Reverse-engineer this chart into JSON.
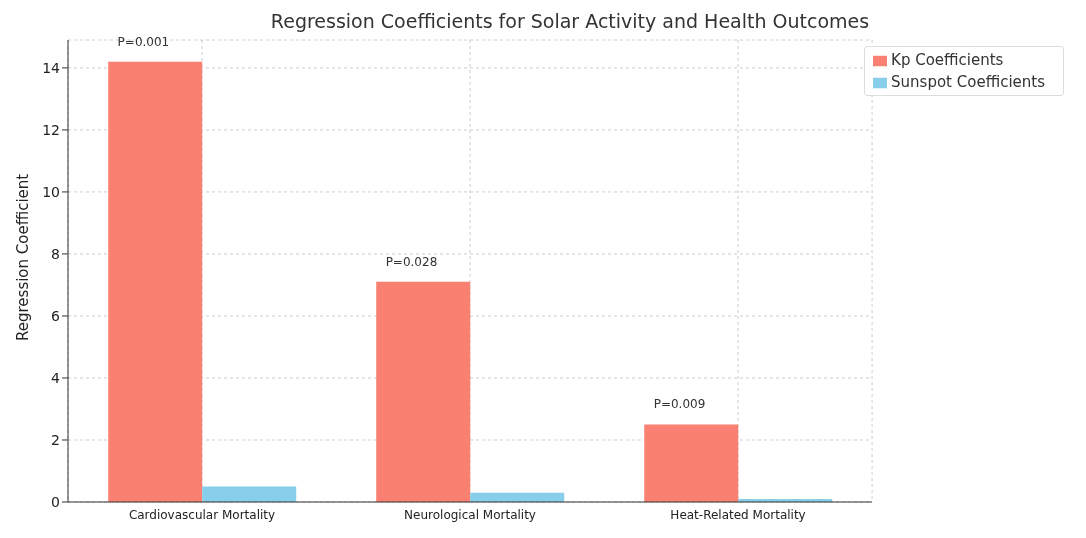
{
  "chart_data": {
    "type": "bar",
    "title": "Regression Coefficients for Solar Activity and Health Outcomes",
    "ylabel": "Regression Coefficient",
    "categories": [
      "Cardiovascular Mortality",
      "Neurological Mortality",
      "Heat-Related Mortality"
    ],
    "series": [
      {
        "name": "Kp Coefficients",
        "color": "#fa8072",
        "values": [
          14.2,
          7.1,
          2.5
        ]
      },
      {
        "name": "Sunspot Coefficients",
        "color": "#87ceeb",
        "values": [
          0.5,
          0.3,
          0.1
        ]
      }
    ],
    "ylim": [
      0,
      14.9
    ],
    "yticks": [
      0,
      2,
      4,
      6,
      8,
      10,
      12,
      14
    ],
    "grid": true,
    "legend": "top right",
    "annotations": [
      {
        "text": "P=0.001",
        "x": "Cardiovascular Mortality",
        "y": 14.2
      },
      {
        "text": "P=0.028",
        "x": "Neurological Mortality",
        "y": 7.1
      },
      {
        "text": "P=0.009",
        "x": "Heat-Related Mortality",
        "y": 2.5
      }
    ]
  }
}
